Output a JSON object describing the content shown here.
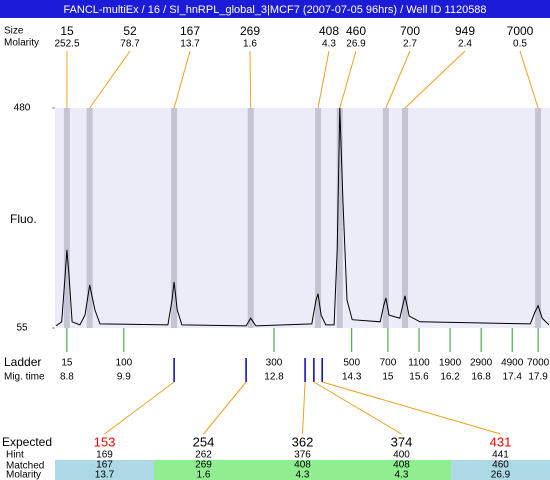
{
  "chart_data": {
    "type": "electropherogram",
    "title": "FANCL-multiEx / 16 / SI_hnRPL_global_3|MCF7 (2007-07-05 96hrs) / Well ID 1120588",
    "size_label": "Size",
    "molarity_label": "Molarity",
    "ylabel": "Fluo.",
    "xlim": [
      8.57,
      18.13
    ],
    "ylim": [
      55,
      480
    ],
    "yticks": [
      55,
      480
    ],
    "plot_color": "#ececf8",
    "band_color": "#c4c4d4",
    "peaks": {
      "size": [
        15,
        52,
        167,
        269,
        408,
        460,
        700,
        949,
        7000
      ],
      "molarity": [
        252.5,
        78.7,
        13.7,
        1.6,
        4.3,
        26.9,
        2.7,
        2.4,
        0.5
      ],
      "x": [
        8.8,
        9.24,
        10.87,
        12.35,
        13.65,
        14.07,
        14.96,
        15.33,
        17.9
      ]
    },
    "trace": {
      "x": [
        8.59,
        8.7,
        8.76,
        8.8,
        8.84,
        8.9,
        9.05,
        9.15,
        9.24,
        9.34,
        9.44,
        10.75,
        10.83,
        10.87,
        10.93,
        11.02,
        12.26,
        12.35,
        12.45,
        13.53,
        13.61,
        13.65,
        13.71,
        13.8,
        13.96,
        14.02,
        14.07,
        14.13,
        14.21,
        14.31,
        14.85,
        14.92,
        14.96,
        15.02,
        15.23,
        15.33,
        15.41,
        15.62,
        17.75,
        17.84,
        17.9,
        17.98,
        18.11
      ],
      "y": [
        59,
        67,
        148,
        206,
        157,
        67,
        61,
        80,
        138,
        90,
        63,
        61,
        109,
        144,
        90,
        61,
        59,
        74,
        59,
        63,
        109,
        121,
        80,
        61,
        61,
        206,
        480,
        302,
        109,
        71,
        67,
        99,
        113,
        80,
        74,
        117,
        78,
        67,
        63,
        86,
        98,
        74,
        61
      ]
    },
    "ladder": {
      "label": "Ladder",
      "time_label": "Mig. time",
      "size": [
        15,
        100,
        300,
        500,
        700,
        1100,
        1900,
        2900,
        4900,
        7000
      ],
      "mig_time": [
        8.8,
        9.9,
        12.8,
        14.3,
        15,
        15.6,
        16.2,
        16.8,
        17.4,
        17.9
      ]
    },
    "expected": {
      "row_labels": [
        "Expected",
        "Hint",
        "Matched",
        "Molarity"
      ],
      "expected": [
        153,
        254,
        362,
        374,
        431
      ],
      "hint": [
        169,
        262,
        376,
        400,
        441
      ],
      "matched": [
        167,
        269,
        408,
        408,
        460
      ],
      "molarity": [
        13.7,
        1.6,
        4.3,
        4.3,
        26.9
      ],
      "x": [
        10.87,
        12.26,
        13.4,
        13.57,
        13.73
      ],
      "colors": [
        "#ff0000",
        "#000000",
        "#000000",
        "#000000",
        "#ff0000"
      ],
      "cell_colors": [
        "#add8e6",
        "#90ee90",
        "#90ee90",
        "#90ee90",
        "#add8e6"
      ]
    }
  }
}
